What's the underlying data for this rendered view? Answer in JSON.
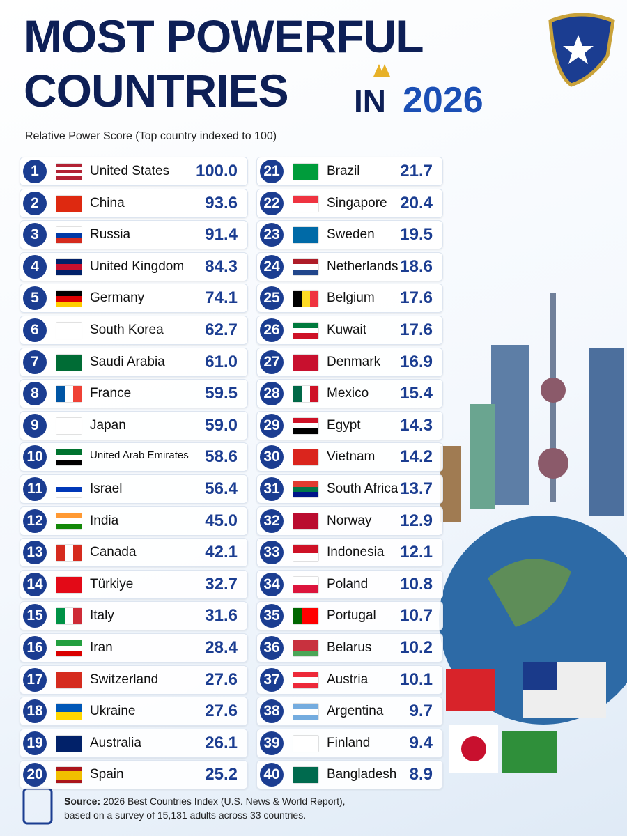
{
  "header": {
    "title_line1": "MOST POWERFUL",
    "title_line2": "COUNTRIES",
    "title_in": "IN",
    "title_year": "2026",
    "subtitle": "Relative Power Score (Top country indexed to 100)"
  },
  "table": {
    "rows": [
      [
        1,
        "United States",
        "100.0"
      ],
      [
        2,
        "China",
        "93.6"
      ],
      [
        3,
        "Russia",
        "91.4"
      ],
      [
        4,
        "United Kingdom",
        "84.3"
      ],
      [
        5,
        "Germany",
        "74.1"
      ],
      [
        6,
        "South Korea",
        "62.7"
      ],
      [
        7,
        "Saudi Arabia",
        "61.0"
      ],
      [
        8,
        "France",
        "59.5"
      ],
      [
        9,
        "Japan",
        "59.0"
      ],
      [
        10,
        "United Arab Emirates",
        "58.6"
      ],
      [
        11,
        "Israel",
        "56.4"
      ],
      [
        12,
        "India",
        "45.0"
      ],
      [
        13,
        "Canada",
        "42.1"
      ],
      [
        14,
        "Türkiye",
        "32.7"
      ],
      [
        15,
        "Italy",
        "31.6"
      ],
      [
        16,
        "Iran",
        "28.4"
      ],
      [
        17,
        "Switzerland",
        "27.6"
      ],
      [
        18,
        "Ukraine",
        "27.6"
      ],
      [
        19,
        "Australia",
        "26.1"
      ],
      [
        20,
        "Spain",
        "25.2"
      ],
      [
        21,
        "Brazil",
        "21.7"
      ],
      [
        22,
        "Singapore",
        "20.4"
      ],
      [
        23,
        "Sweden",
        "19.5"
      ],
      [
        24,
        "Netherlands",
        "18.6"
      ],
      [
        25,
        "Belgium",
        "17.6"
      ],
      [
        26,
        "Kuwait",
        "17.6"
      ],
      [
        27,
        "Denmark",
        "16.9"
      ],
      [
        28,
        "Mexico",
        "15.4"
      ],
      [
        29,
        "Egypt",
        "14.3"
      ],
      [
        30,
        "Vietnam",
        "14.2"
      ],
      [
        31,
        "South Africa",
        "13.7"
      ],
      [
        32,
        "Norway",
        "12.9"
      ],
      [
        33,
        "Indonesia",
        "12.1"
      ],
      [
        34,
        "Poland",
        "10.8"
      ],
      [
        35,
        "Portugal",
        "10.7"
      ],
      [
        36,
        "Belarus",
        "10.2"
      ],
      [
        37,
        "Austria",
        "10.1"
      ],
      [
        38,
        "Argentina",
        "9.7"
      ],
      [
        39,
        "Finland",
        "9.4"
      ],
      [
        40,
        "Bangladesh",
        "8.9"
      ]
    ]
  },
  "footer": {
    "source_label": "Source:",
    "source_line1": "2026 Best Countries Index (U.S. News & World Report),",
    "source_line2": "based on a survey of 15,131 adults across 33 countries."
  }
}
